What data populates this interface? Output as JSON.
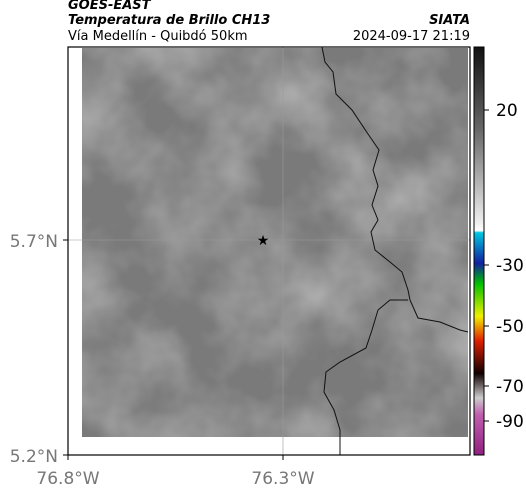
{
  "header": {
    "title": "GOES-EAST",
    "subtitle": "Temperatura de Brillo CH13",
    "region": "Vía Medellín - Quibdó 50km",
    "source": "SIATA",
    "timestamp": "2024-09-17 21:19"
  },
  "map": {
    "lat_labels": [
      "5.7°N",
      "5.2°N"
    ],
    "lon_labels": [
      "76.8°W",
      "76.3°W"
    ]
  },
  "colorbar": {
    "tick_labels": [
      "20",
      "-30",
      "-50",
      "-70",
      "-90"
    ]
  }
}
